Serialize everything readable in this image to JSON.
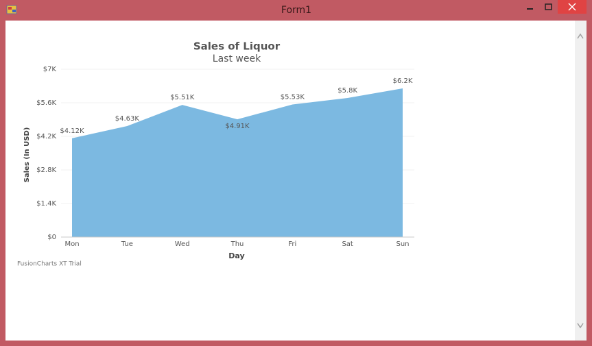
{
  "window": {
    "title": "Form1"
  },
  "chart_data": {
    "type": "area",
    "title": "Sales of Liquor",
    "subtitle": "Last week",
    "x_label": "Day",
    "y_label": "Sales (In USD)",
    "categories": [
      "Mon",
      "Tue",
      "Wed",
      "Thu",
      "Fri",
      "Sat",
      "Sun"
    ],
    "values": [
      4120,
      4630,
      5510,
      4910,
      5530,
      5800,
      6200
    ],
    "value_labels": [
      "$4.12K",
      "$4.63K",
      "$5.51K",
      "$4.91K",
      "$5.53K",
      "$5.8K",
      "$6.2K"
    ],
    "color": "#7cb9e1",
    "ylim": [
      0,
      7000
    ],
    "yticks": [
      {
        "value": 0,
        "label": "$0"
      },
      {
        "value": 1400,
        "label": "$1.4K"
      },
      {
        "value": 2800,
        "label": "$2.8K"
      },
      {
        "value": 4200,
        "label": "$4.2K"
      },
      {
        "value": 5600,
        "label": "$5.6K"
      },
      {
        "value": 7000,
        "label": "$7K"
      }
    ],
    "grid": true,
    "watermark": "FusionCharts XT Trial"
  }
}
